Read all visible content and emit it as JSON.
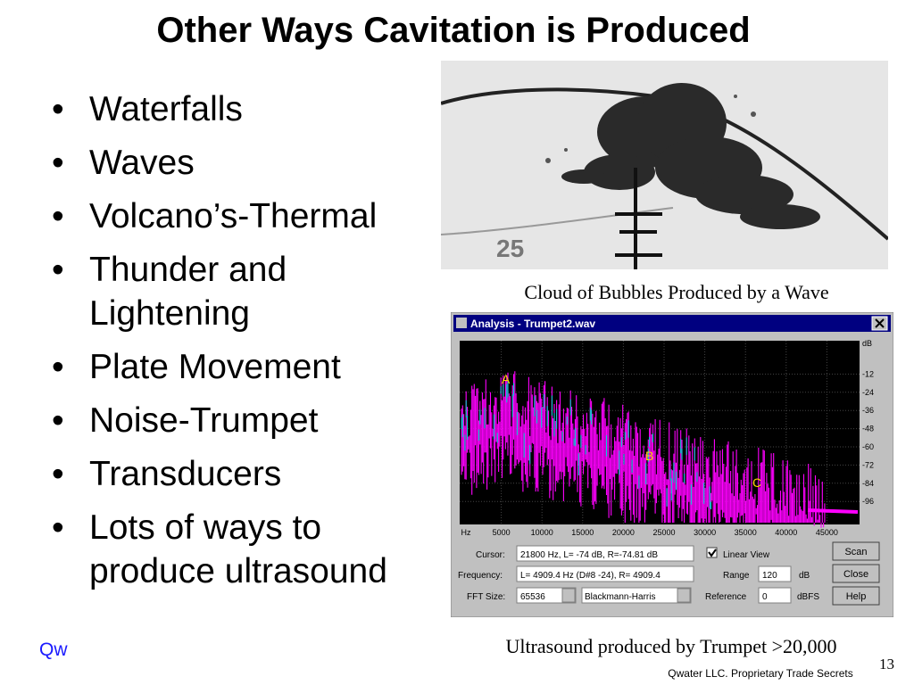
{
  "title": "Other Ways Cavitation is Produced",
  "bullets": [
    "Waterfalls",
    "Waves",
    "Volcano’s-Thermal",
    "Thunder and Lightening",
    "Plate Movement",
    "Noise-Trumpet",
    "Transducers",
    "Lots of ways to produce ultrasound"
  ],
  "photo": {
    "label": "25",
    "caption": "Cloud of Bubbles Produced by a Wave"
  },
  "analyzer": {
    "window_title": "Analysis - Trumpet2.wav",
    "x_ticks": [
      "Hz",
      "5000",
      "10000",
      "15000",
      "20000",
      "25000",
      "30000",
      "35000",
      "40000",
      "45000"
    ],
    "db_ticks": [
      "dB",
      "-12",
      "-24",
      "-36",
      "-48",
      "-60",
      "-72",
      "-84",
      "-96"
    ],
    "markers": [
      "A",
      "B",
      "C"
    ],
    "cursor_label": "Cursor:",
    "cursor_value": "21800 Hz, L=  -74 dB, R=-74.81 dB",
    "frequency_label": "Frequency:",
    "frequency_value": "L= 4909.4 Hz (D#8 -24), R= 4909.4",
    "fft_label": "FFT Size:",
    "fft_value": "65536",
    "window_value": "Blackmann-Harris",
    "linear_view": "Linear View",
    "range_label": "Range",
    "range_value": "120",
    "range_unit": "dB",
    "reference_label": "Reference",
    "reference_value": "0",
    "reference_unit": "dBFS",
    "buttons": [
      "Scan",
      "Close",
      "Help"
    ],
    "caption": "Ultrasound produced by Trumpet >20,000"
  },
  "footer": {
    "logo": "Qw",
    "page": "13",
    "notice": "Qwater LLC. Proprietary Trade Secrets"
  }
}
